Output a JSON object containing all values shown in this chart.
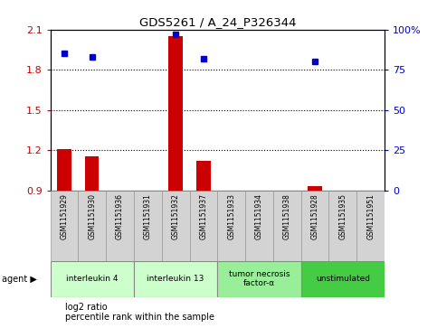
{
  "title": "GDS5261 / A_24_P326344",
  "samples": [
    "GSM1151929",
    "GSM1151930",
    "GSM1151936",
    "GSM1151931",
    "GSM1151932",
    "GSM1151937",
    "GSM1151933",
    "GSM1151934",
    "GSM1151938",
    "GSM1151928",
    "GSM1151935",
    "GSM1151951"
  ],
  "log2_ratio": [
    1.21,
    1.15,
    0.9,
    0.9,
    2.05,
    1.12,
    0.9,
    0.9,
    0.9,
    0.93,
    0.9,
    0.9
  ],
  "percentile": [
    85,
    83,
    null,
    null,
    97,
    82,
    null,
    null,
    null,
    80,
    null,
    null
  ],
  "ylim_left": [
    0.9,
    2.1
  ],
  "yticks_left": [
    0.9,
    1.2,
    1.5,
    1.8,
    2.1
  ],
  "yticks_right": [
    0,
    25,
    50,
    75,
    100
  ],
  "ytick_labels_left": [
    "0.9",
    "1.2",
    "1.5",
    "1.8",
    "2.1"
  ],
  "ytick_labels_right": [
    "0",
    "25",
    "50",
    "75",
    "100%"
  ],
  "hlines": [
    1.2,
    1.5,
    1.8
  ],
  "bar_color": "#cc0000",
  "point_color": "#0000cc",
  "agent_groups": [
    {
      "label": "interleukin 4",
      "indices": [
        0,
        1,
        2
      ],
      "color": "#ccffcc"
    },
    {
      "label": "interleukin 13",
      "indices": [
        3,
        4,
        5
      ],
      "color": "#ccffcc"
    },
    {
      "label": "tumor necrosis\nfactor-α",
      "indices": [
        6,
        7,
        8
      ],
      "color": "#99ee99"
    },
    {
      "label": "unstimulated",
      "indices": [
        9,
        10,
        11
      ],
      "color": "#44cc44"
    }
  ],
  "bg_color": "#ffffff",
  "bar_width": 0.5,
  "baseline": 0.9,
  "sample_box_color": "#d3d3d3",
  "sample_box_edge": "#999999"
}
